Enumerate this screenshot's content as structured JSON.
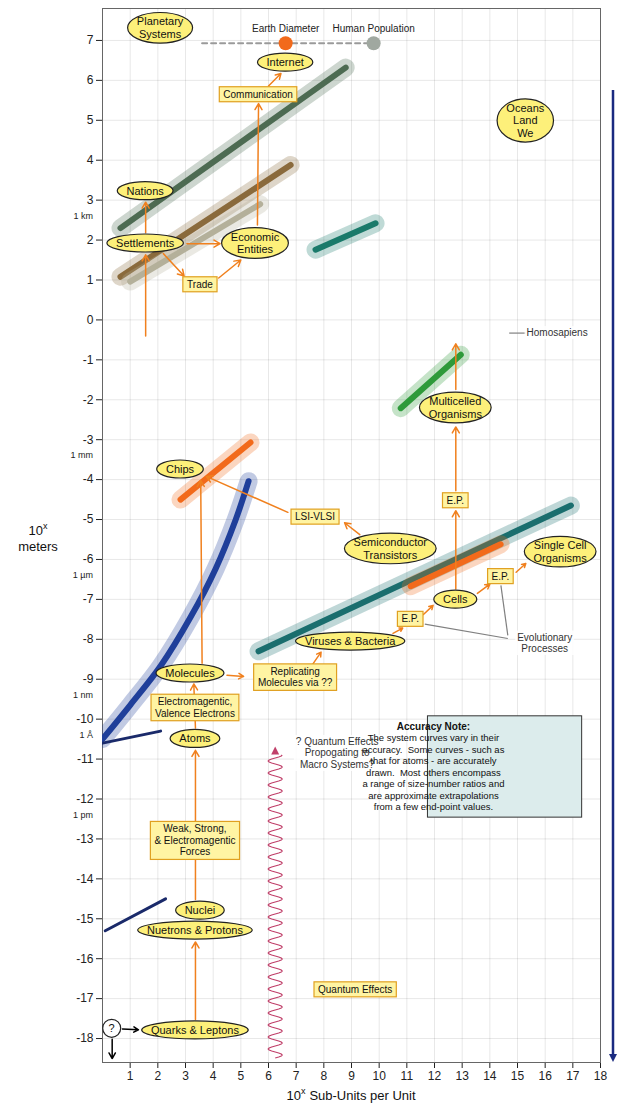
{
  "chart_data": {
    "type": "diagram",
    "xlabel": {
      "base": "10",
      "exponent": "x",
      "text": "Sub-Units per Unit"
    },
    "ylabel": {
      "base": "10",
      "exponent": "x",
      "text": "meters"
    },
    "xlim": [
      0,
      18
    ],
    "ylim": [
      -18.6,
      7.8
    ],
    "xticks": [
      1,
      2,
      3,
      4,
      5,
      6,
      7,
      8,
      9,
      10,
      11,
      12,
      13,
      14,
      15,
      16,
      17,
      18
    ],
    "yticks": [
      7,
      6,
      5,
      4,
      3,
      2,
      1,
      0,
      -1,
      -2,
      -3,
      -4,
      -5,
      -6,
      -7,
      -8,
      -9,
      -10,
      -11,
      -12,
      -13,
      -14,
      -15,
      -16,
      -17,
      -18
    ],
    "grid": true,
    "y_unit_labels": [
      {
        "value": 3,
        "label": "1 km"
      },
      {
        "value": -3,
        "label": "1 mm"
      },
      {
        "value": -6,
        "label": "1 µm"
      },
      {
        "value": -9,
        "label": "1 nm"
      },
      {
        "value": -10,
        "label": "1 Å"
      },
      {
        "value": -12,
        "label": "1 pm"
      }
    ],
    "curves": [
      {
        "points": [
          [
            0.65,
            2.3
          ],
          [
            8.79,
            6.32
          ]
        ],
        "color": "#4d6b52",
        "line_style": "band"
      },
      {
        "points": [
          [
            0.65,
            1.08
          ],
          [
            6.8,
            3.88
          ]
        ],
        "color": "#8a6a3c",
        "line_style": "band"
      },
      {
        "points": [
          [
            1.0,
            0.96
          ],
          [
            5.7,
            2.9
          ]
        ],
        "color": "#b4b09a",
        "line_style": "band"
      },
      {
        "points": [
          [
            7.7,
            1.76
          ],
          [
            9.87,
            2.42
          ]
        ],
        "color": "#1a7a6a",
        "line_style": "band"
      },
      {
        "points": [
          [
            10.78,
            -2.21
          ],
          [
            12.95,
            -0.87
          ]
        ],
        "color": "#2e9a3a",
        "line_style": "band"
      },
      {
        "points": [
          [
            5.64,
            -8.3
          ],
          [
            16.93,
            -4.65
          ]
        ],
        "color": "#1a6e6e",
        "line_style": "band"
      },
      {
        "points": [
          [
            11.14,
            -6.67
          ],
          [
            14.39,
            -5.62
          ]
        ],
        "color": "#f26a1b",
        "line_style": "band"
      },
      {
        "points": [
          [
            2.82,
            -4.5
          ],
          [
            5.35,
            -3.07
          ]
        ],
        "color": "#f26a1b",
        "line_style": "band"
      },
      {
        "points": [
          [
            0,
            -10.5
          ],
          [
            1.01,
            -9.64
          ],
          [
            2.1,
            -8.67
          ],
          [
            3.18,
            -7.45
          ],
          [
            4.09,
            -6.23
          ],
          [
            4.81,
            -5.01
          ],
          [
            5.28,
            -4.04
          ]
        ],
        "color": "#1f3f9a",
        "line_style": "band"
      },
      {
        "points": [
          [
            0,
            -10.6
          ],
          [
            2.1,
            -10.3
          ]
        ],
        "color": "#1a2a6a",
        "line_style": "solid"
      },
      {
        "points": [
          [
            0.1,
            -15.3
          ],
          [
            2.28,
            -14.5
          ]
        ],
        "color": "#1a2a6a",
        "line_style": "solid"
      },
      {
        "points": [
          [
            3.6,
            6.93
          ],
          [
            9.8,
            6.93
          ]
        ],
        "color": "#9a9a9a",
        "line_style": "dashed"
      }
    ],
    "markers": [
      {
        "label": "Earth Diameter",
        "x": 6.62,
        "y": 6.93,
        "color": "#f26a1b"
      },
      {
        "label": "Human Population",
        "x": 9.8,
        "y": 6.93,
        "color": "#a0a8a0"
      }
    ],
    "edges": {
      "color": "#f0801e",
      "items": [
        {
          "from": [
            3.36,
            -17.52
          ],
          "to": [
            3.36,
            -15.58
          ]
        },
        {
          "from": [
            3.36,
            -14.52
          ],
          "to": [
            3.36,
            -10.78
          ]
        },
        {
          "from": [
            3.36,
            -10.22
          ],
          "to": [
            3.3,
            -9.12
          ]
        },
        {
          "from": [
            3.6,
            -8.6
          ],
          "to": [
            3.55,
            -4.02
          ]
        },
        {
          "from": [
            4.5,
            -8.9
          ],
          "to": [
            5.1,
            -8.93
          ]
        },
        {
          "from": [
            7.6,
            -8.62
          ],
          "to": [
            7.9,
            -8.32
          ]
        },
        {
          "from": [
            10.5,
            -7.85
          ],
          "to": [
            10.85,
            -7.72
          ]
        },
        {
          "from": [
            11.6,
            -7.38
          ],
          "to": [
            11.95,
            -7.15
          ]
        },
        {
          "from": [
            12.77,
            -6.74
          ],
          "to": [
            12.77,
            -4.78
          ]
        },
        {
          "from": [
            12.77,
            -4.28
          ],
          "to": [
            12.77,
            -2.68
          ]
        },
        {
          "from": [
            13.55,
            -6.85
          ],
          "to": [
            14.0,
            -6.62
          ]
        },
        {
          "from": [
            14.95,
            -6.32
          ],
          "to": [
            15.3,
            -6.1
          ]
        },
        {
          "from": [
            9.3,
            -5.38
          ],
          "to": [
            8.75,
            -5.08
          ]
        },
        {
          "from": [
            6.7,
            -4.82
          ],
          "to": [
            3.75,
            -3.92
          ]
        },
        {
          "from": [
            1.56,
            -0.4
          ],
          "to": [
            1.56,
            1.63
          ]
        },
        {
          "from": [
            1.56,
            2.18
          ],
          "to": [
            1.56,
            2.95
          ]
        },
        {
          "from": [
            3.05,
            1.91
          ],
          "to": [
            4.25,
            1.91
          ]
        },
        {
          "from": [
            2.2,
            1.66
          ],
          "to": [
            2.95,
            1.1
          ]
        },
        {
          "from": [
            4.2,
            1.05
          ],
          "to": [
            5.0,
            1.5
          ]
        },
        {
          "from": [
            5.6,
            2.38
          ],
          "to": [
            5.64,
            5.42
          ]
        },
        {
          "from": [
            6.0,
            5.86
          ],
          "to": [
            6.45,
            6.17
          ]
        },
        {
          "from": [
            12.77,
            -1.74
          ],
          "to": [
            12.77,
            -0.6
          ]
        }
      ]
    },
    "pointers": {
      "color": "#000000",
      "items": [
        {
          "from": [
            0.72,
            -17.76
          ],
          "to": [
            1.3,
            -17.78
          ]
        },
        {
          "from": [
            0.35,
            -18.02
          ],
          "to": [
            0.35,
            -18.5
          ]
        }
      ]
    },
    "leaders": {
      "color": "#808080",
      "items": [
        {
          "from": [
            14.7,
            -0.33
          ],
          "to": [
            15.3,
            -0.33
          ]
        },
        {
          "from": [
            14.4,
            -6.65
          ],
          "to": [
            14.65,
            -7.9
          ]
        },
        {
          "from": [
            11.65,
            -7.62
          ],
          "to": [
            14.65,
            -7.98
          ]
        }
      ]
    },
    "ellipses": {
      "color": "#fdf07a",
      "items": [
        {
          "label": [
            "Planetary",
            "Systems"
          ],
          "x": 2.1,
          "y": 7.3
        },
        {
          "label": [
            "Internet"
          ],
          "x": 6.62,
          "y": 6.44
        },
        {
          "label": [
            "Oceans",
            "Land",
            "We"
          ],
          "x": 15.3,
          "y": 4.98
        },
        {
          "label": [
            "Nations"
          ],
          "x": 1.56,
          "y": 3.22
        },
        {
          "label": [
            "Settlements"
          ],
          "x": 1.56,
          "y": 1.91
        },
        {
          "label": [
            "Economic",
            "Entities"
          ],
          "x": 5.53,
          "y": 1.91
        },
        {
          "label": [
            "Multicelled",
            "Organisms"
          ],
          "x": 12.77,
          "y": -2.21
        },
        {
          "label": [
            "Chips"
          ],
          "x": 2.82,
          "y": -3.75
        },
        {
          "label": [
            "Semiconductor",
            "Transistors"
          ],
          "x": 10.42,
          "y": -5.74
        },
        {
          "label": [
            "Single Cell",
            "Organisms"
          ],
          "x": 16.56,
          "y": -5.82
        },
        {
          "label": [
            "Cells"
          ],
          "x": 12.77,
          "y": -7.01
        },
        {
          "label": [
            "Viruses & Bacteria"
          ],
          "x": 8.97,
          "y": -8.06
        },
        {
          "label": [
            "Molecules"
          ],
          "x": 3.18,
          "y": -8.86
        },
        {
          "label": [
            "Atoms"
          ],
          "x": 3.36,
          "y": -10.5
        },
        {
          "label": [
            "Nuclei"
          ],
          "x": 3.54,
          "y": -14.8
        },
        {
          "label": [
            "Nuetrons & Protons"
          ],
          "x": 3.36,
          "y": -15.3
        },
        {
          "label": [
            "Quarks & Leptons"
          ],
          "x": 3.36,
          "y": -17.8
        }
      ]
    },
    "circles": {
      "color": "#ffffff",
      "items": [
        {
          "label": [
            "?"
          ],
          "x": 0.35,
          "y": -17.76
        }
      ]
    },
    "boxes": {
      "color": "#fff4a3",
      "items": [
        {
          "label": [
            "Communication"
          ],
          "x": 5.64,
          "y": 5.64
        },
        {
          "label": [
            "Trade"
          ],
          "x": 3.54,
          "y": 0.88
        },
        {
          "label": [
            "LSI-VLSI"
          ],
          "x": 7.7,
          "y": -4.94
        },
        {
          "label": [
            "E.P."
          ],
          "x": 12.77,
          "y": -4.53
        },
        {
          "label": [
            "E.P."
          ],
          "x": 14.4,
          "y": -6.43
        },
        {
          "label": [
            "E.P."
          ],
          "x": 11.14,
          "y": -7.5
        },
        {
          "label": [
            "Replicating",
            "Molecules via ??"
          ],
          "x": 6.98,
          "y": -8.96
        },
        {
          "label": [
            "Electromagentic,",
            "Valence Electrons"
          ],
          "x": 3.36,
          "y": -9.72
        },
        {
          "label": [
            "Weak, Strong,",
            "& Electromagentic",
            "Forces"
          ],
          "x": 3.36,
          "y": -13.05
        },
        {
          "label": [
            "Quantum Effects"
          ],
          "x": 9.15,
          "y": -16.78
        }
      ]
    },
    "labels": {
      "color": "#333333",
      "items": [
        {
          "label": [
            "Homosapiens"
          ],
          "x": 16.45,
          "y": -0.33
        },
        {
          "label": [
            "Evolutionary",
            "Processes"
          ],
          "x": 16.0,
          "y": -8.1
        },
        {
          "label": [
            "? Quantum Effects",
            "Propogating to",
            "Macro Systems?"
          ],
          "x": 8.5,
          "y": -10.86
        }
      ]
    },
    "wave": {
      "color": "#c0406a",
      "x": 6.26,
      "from": -18.5,
      "to": -10.7
    },
    "note": {
      "title": "Accuracy Note:",
      "lines": [
        "The system curves vary in their",
        "accuracy.  Some curves - such as",
        "that for atoms - are accurately",
        "drawn.  Most others encompass",
        "a range of size-number ratios and",
        "are approximate extrapolations",
        "from a few end-point values."
      ],
      "color": "#dcecec",
      "x": 14.55,
      "y": -11.2
    }
  }
}
